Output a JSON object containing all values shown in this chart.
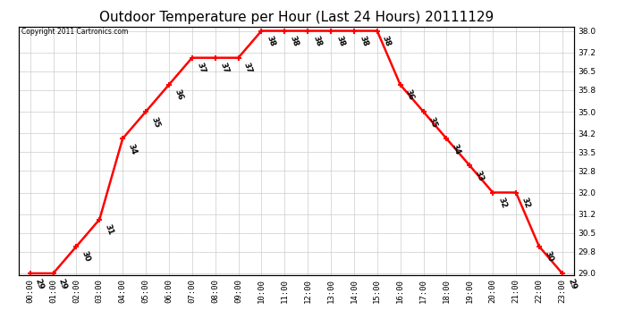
{
  "title": "Outdoor Temperature per Hour (Last 24 Hours) 20111129",
  "copyright": "Copyright 2011 Cartronics.com",
  "hours": [
    "00:00",
    "01:00",
    "02:00",
    "03:00",
    "04:00",
    "05:00",
    "06:00",
    "07:00",
    "08:00",
    "09:00",
    "10:00",
    "11:00",
    "12:00",
    "13:00",
    "14:00",
    "15:00",
    "16:00",
    "17:00",
    "18:00",
    "19:00",
    "20:00",
    "21:00",
    "22:00",
    "23:00"
  ],
  "temperatures": [
    29,
    29,
    30,
    31,
    34,
    35,
    36,
    37,
    37,
    37,
    38,
    38,
    38,
    38,
    38,
    38,
    36,
    35,
    34,
    33,
    32,
    32,
    30,
    29
  ],
  "line_color": "#ff0000",
  "marker": "+",
  "marker_color": "#ff0000",
  "marker_size": 5,
  "line_width": 1.8,
  "ylim_min": 29.0,
  "ylim_max": 38.0,
  "yticks": [
    29.0,
    29.8,
    30.5,
    31.2,
    32.0,
    32.8,
    33.5,
    34.2,
    35.0,
    35.8,
    36.5,
    37.2,
    38.0
  ],
  "background_color": "#ffffff",
  "grid_color": "#cccccc",
  "title_fontsize": 11,
  "tick_fontsize": 6.5,
  "annotation_fontsize": 6.5,
  "annotation_rotation": -70,
  "copyright_fontsize": 5.5
}
